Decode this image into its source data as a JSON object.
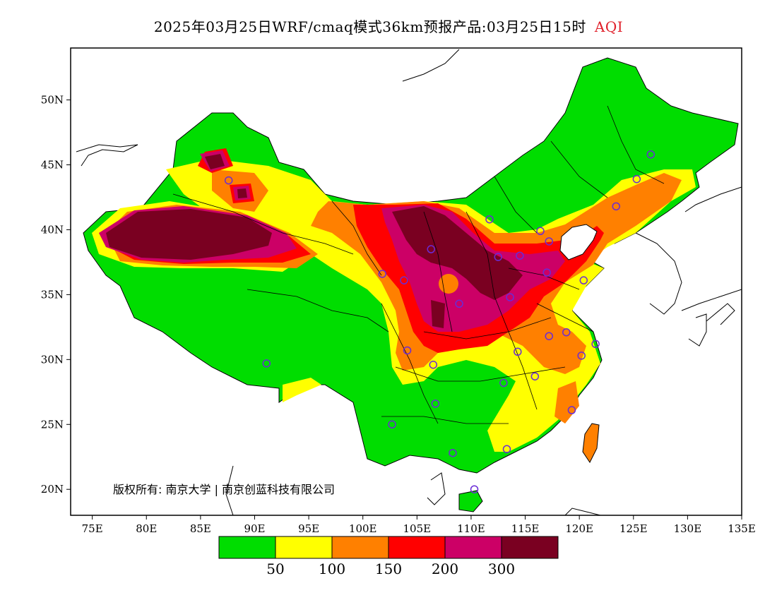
{
  "title": {
    "main": "2025年03月25日WRF/cmaq模式36km预报产品:03月25日15时",
    "variable": "AQI",
    "variable_color": "#e0202a"
  },
  "axes": {
    "lon_labels": [
      "75E",
      "80E",
      "85E",
      "90E",
      "95E",
      "100E",
      "105E",
      "110E",
      "115E",
      "120E",
      "125E",
      "130E",
      "135E"
    ],
    "lat_labels": [
      "50N",
      "45N",
      "40N",
      "35N",
      "30N",
      "25N",
      "20N"
    ],
    "lon_range": [
      73,
      135
    ],
    "lat_range": [
      18,
      54
    ]
  },
  "colorbar": {
    "colors": [
      "#00dd00",
      "#ffff00",
      "#ff8000",
      "#ff0000",
      "#cc0066",
      "#7a0021"
    ],
    "labels": [
      "50",
      "100",
      "150",
      "200",
      "300"
    ]
  },
  "copyright": "版权所有: 南京大学 | 南京创蓝科技有限公司",
  "stations": [
    [
      87.6,
      43.8
    ],
    [
      101.8,
      36.6
    ],
    [
      103.8,
      36.1
    ],
    [
      106.3,
      38.5
    ],
    [
      108.9,
      34.3
    ],
    [
      104.1,
      30.7
    ],
    [
      106.5,
      29.6
    ],
    [
      106.7,
      26.6
    ],
    [
      102.7,
      25.0
    ],
    [
      91.1,
      29.7
    ],
    [
      108.3,
      22.8
    ],
    [
      110.3,
      20.0
    ],
    [
      113.3,
      23.1
    ],
    [
      113.0,
      28.2
    ],
    [
      114.3,
      30.6
    ],
    [
      115.9,
      28.7
    ],
    [
      119.3,
      26.1
    ],
    [
      120.2,
      30.3
    ],
    [
      121.5,
      31.2
    ],
    [
      118.8,
      32.1
    ],
    [
      117.2,
      31.8
    ],
    [
      113.6,
      34.8
    ],
    [
      117.0,
      36.7
    ],
    [
      114.5,
      38.0
    ],
    [
      112.5,
      37.9
    ],
    [
      116.4,
      39.9
    ],
    [
      117.2,
      39.1
    ],
    [
      111.7,
      40.8
    ],
    [
      123.4,
      41.8
    ],
    [
      125.3,
      43.9
    ],
    [
      126.6,
      45.8
    ],
    [
      120.4,
      36.1
    ]
  ]
}
